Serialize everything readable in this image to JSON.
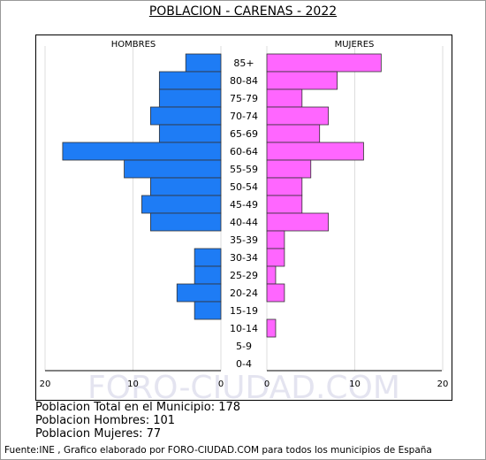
{
  "title": "POBLACION - CARENAS - 2022",
  "chart_data": {
    "type": "bar",
    "orientation": "horizontal-pyramid",
    "categories": [
      "85+",
      "80-84",
      "75-79",
      "70-74",
      "65-69",
      "60-64",
      "55-59",
      "50-54",
      "45-49",
      "40-44",
      "35-39",
      "30-34",
      "25-29",
      "20-24",
      "15-19",
      "10-14",
      "5-9",
      "0-4"
    ],
    "series": [
      {
        "name": "HOMBRES",
        "color": "#1e7cf5",
        "values": [
          4,
          7,
          7,
          8,
          7,
          18,
          11,
          8,
          9,
          8,
          0,
          3,
          3,
          5,
          3,
          0,
          0,
          0
        ]
      },
      {
        "name": "MUJERES",
        "color": "#ff66ff",
        "values": [
          13,
          8,
          4,
          7,
          6,
          11,
          5,
          4,
          4,
          7,
          2,
          2,
          1,
          2,
          0,
          1,
          0,
          0
        ]
      }
    ],
    "xlim": [
      0,
      20
    ],
    "xticks_left": [
      "20",
      "10",
      "0"
    ],
    "xticks_right": [
      "0",
      "10",
      "20"
    ],
    "grid": "vertical",
    "watermark": "FORO-CIUDAD.COM"
  },
  "stats": {
    "total": "Poblacion Total en el Municipio: 178",
    "hombres": "Poblacion Hombres: 101",
    "mujeres": "Poblacion Mujeres: 77"
  },
  "source": "Fuente:INE , Grafico elaborado por FORO-CIUDAD.COM para todos los municipios de España"
}
